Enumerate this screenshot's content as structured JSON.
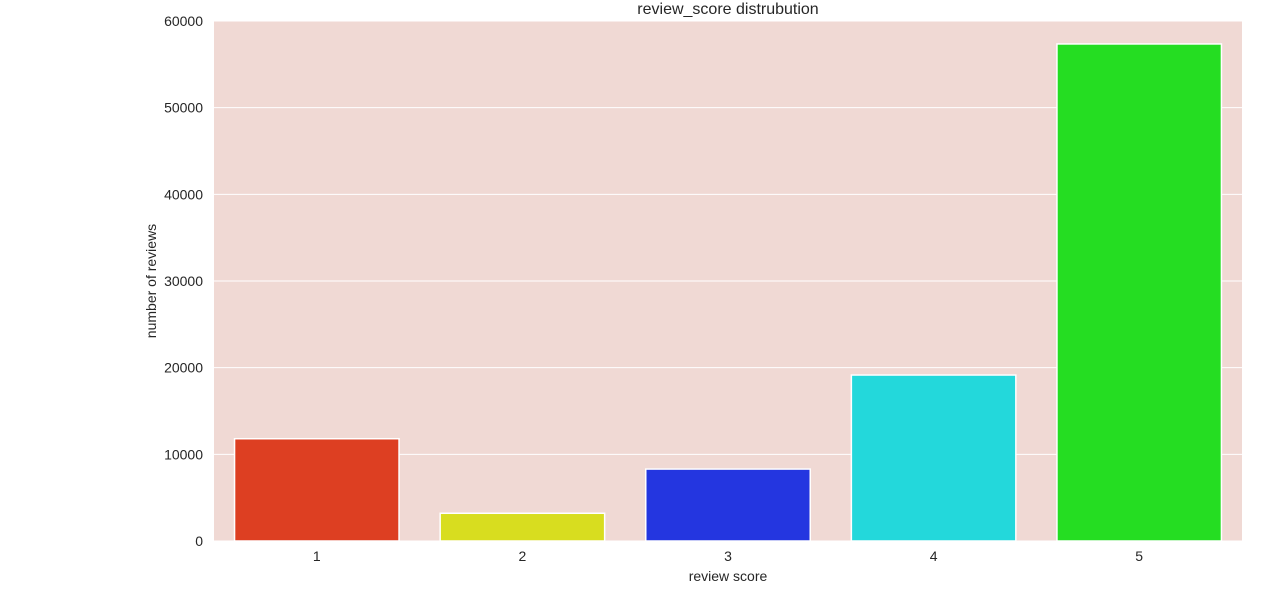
{
  "chart_data": {
    "type": "bar",
    "title": "review_score distrubution",
    "xlabel": "review score",
    "ylabel": "number of reviews",
    "categories": [
      "1",
      "2",
      "3",
      "4",
      "5"
    ],
    "values": [
      11800,
      3200,
      8300,
      19150,
      57350
    ],
    "bar_colors": [
      "#dd3f22",
      "#d8dd1f",
      "#2436e0",
      "#23d8db",
      "#25dd22"
    ],
    "ylim": [
      0,
      60000
    ],
    "yticks": [
      0,
      10000,
      20000,
      30000,
      40000,
      50000,
      60000
    ],
    "grid": true,
    "plot_background": "#f0d9d4",
    "grid_color": "#ffffff"
  }
}
